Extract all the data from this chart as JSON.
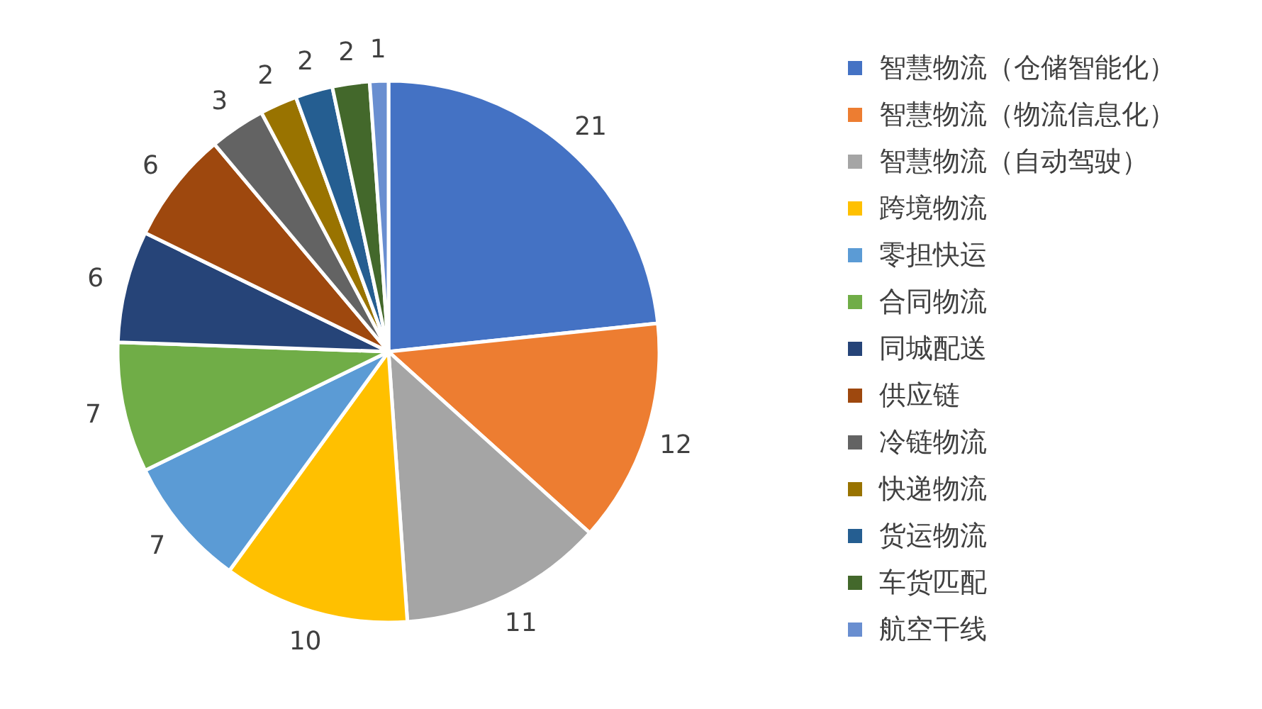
{
  "chart_data": {
    "type": "pie",
    "categories": [
      "智慧物流（仓储智能化）",
      "智慧物流（物流信息化）",
      "智慧物流（自动驾驶）",
      "跨境物流",
      "零担快运",
      "合同物流",
      "同城配送",
      "供应链",
      "冷链物流",
      "快递物流",
      "货运物流",
      "车货匹配",
      "航空干线"
    ],
    "values": [
      21,
      12,
      11,
      10,
      7,
      7,
      6,
      6,
      3,
      2,
      2,
      2,
      1
    ],
    "colors": [
      "#4472c4",
      "#ed7d31",
      "#a5a5a5",
      "#ffc000",
      "#5b9bd5",
      "#70ad47",
      "#264478",
      "#9e480e",
      "#636363",
      "#997300",
      "#255e91",
      "#43682b",
      "#698ed0"
    ],
    "data_labels": true,
    "legend": "right"
  }
}
